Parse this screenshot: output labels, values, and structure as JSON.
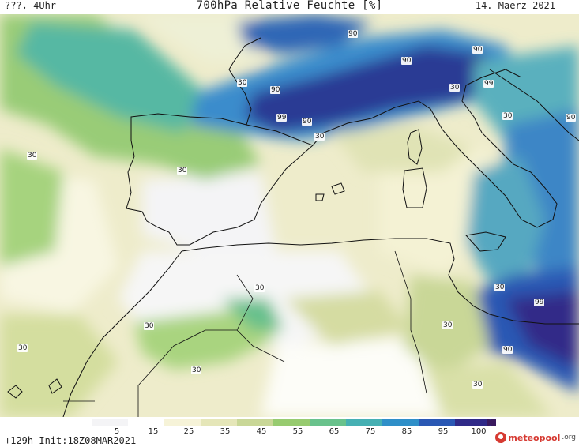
{
  "header": {
    "left_text": "???, 4Uhr",
    "title": "700hPa Relative Feuchte [%]",
    "date": "14. Maerz 2021"
  },
  "map": {
    "labels": [
      "90",
      "90",
      "90",
      "90",
      "99",
      "99",
      "90",
      "30",
      "30",
      "30",
      "30",
      "90",
      "30",
      "30",
      "99",
      "90",
      "30",
      "30",
      "30",
      "30",
      "30",
      "30",
      "30"
    ]
  },
  "legend": {
    "ticks": [
      "5",
      "15",
      "25",
      "35",
      "45",
      "55",
      "65",
      "75",
      "85",
      "95",
      "100"
    ],
    "colors": [
      "#f4f4f6",
      "#ffffff",
      "#f6f3d8",
      "#e5e6b8",
      "#c9d797",
      "#97cb6f",
      "#69c28c",
      "#46b0b3",
      "#2f8fc8",
      "#2a58b4",
      "#302a88",
      "#3a1a5e"
    ]
  },
  "footer": {
    "run_info": "+129h  Init:18Z08MAR2021",
    "brand": "meteopool",
    "brand_suffix": ".org"
  }
}
